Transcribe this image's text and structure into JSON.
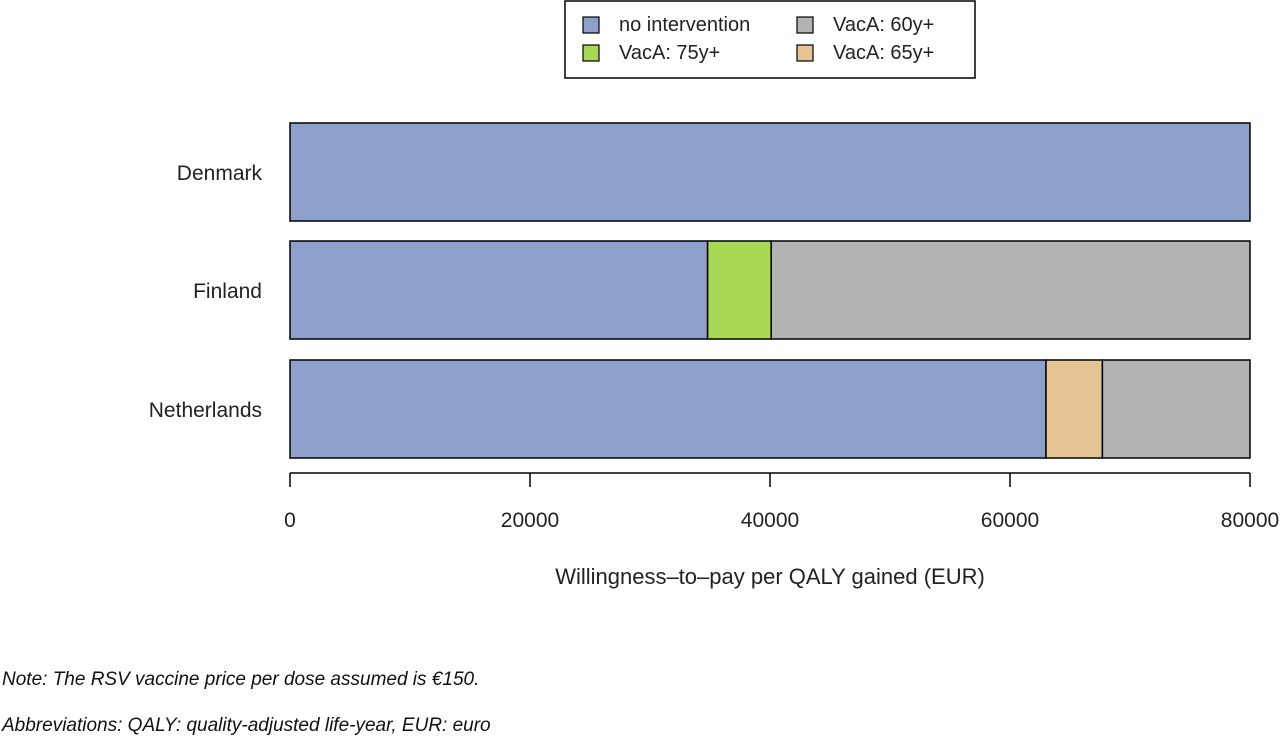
{
  "chart_data": {
    "type": "bar",
    "orientation": "horizontal",
    "stacked": true,
    "categories": [
      "Denmark",
      "Finland",
      "Netherlands"
    ],
    "series": [
      {
        "name": "no intervention",
        "color": "#8da0cb",
        "segments": [
          [
            0,
            80000
          ],
          [
            0,
            34800
          ],
          [
            0,
            63000
          ]
        ]
      },
      {
        "name": "VacA: 75y+",
        "color": "#a6d854",
        "segments": [
          null,
          [
            34800,
            40100
          ],
          null
        ]
      },
      {
        "name": "VacA: 65y+",
        "color": "#e5c494",
        "segments": [
          null,
          null,
          [
            63000,
            67700
          ]
        ]
      },
      {
        "name": "VacA: 60y+",
        "color": "#b3b3b3",
        "segments": [
          null,
          [
            40100,
            80000
          ],
          [
            67700,
            80000
          ]
        ]
      }
    ],
    "xlabel": "Willingness–to–pay per QALY gained (EUR)",
    "xlim": [
      0,
      80000
    ],
    "xticks": [
      0,
      20000,
      40000,
      60000,
      80000
    ],
    "xtick_labels": [
      "0",
      "20000",
      "40000",
      "60000",
      "80000"
    ],
    "legend": {
      "placement": "top-center",
      "entries": [
        {
          "label": "no intervention",
          "color": "#8da0cb"
        },
        {
          "label": "VacA: 60y+",
          "color": "#b3b3b3"
        },
        {
          "label": "VacA: 75y+",
          "color": "#a6d854"
        },
        {
          "label": "VacA: 65y+",
          "color": "#e5c494"
        }
      ]
    },
    "grid": false
  },
  "notes": {
    "note": "Note: The RSV vaccine price per dose assumed is €150.",
    "abbreviations": "Abbreviations: QALY: quality-adjusted life-year, EUR: euro"
  }
}
